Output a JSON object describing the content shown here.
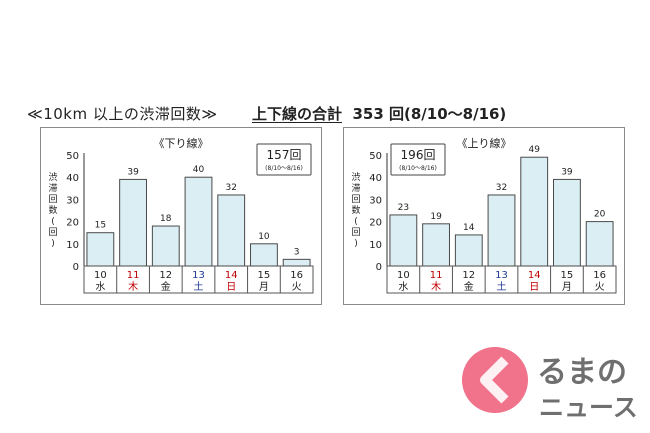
{
  "heading": {
    "left": "≪10km 以上の渋滞回数≫",
    "right_underlined": "上下線の合計",
    "right_total": "353 回(8/10〜8/16)"
  },
  "colors": {
    "bar_fill": "#daeef3",
    "bar_stroke": "#4a4a4a",
    "weekday_text": "#222222",
    "thursday_sunday_text": "#c00000",
    "saturday_text": "#1f3a93",
    "brand_red": "#e4002b",
    "brand_text": "#333333"
  },
  "brand": {
    "logo_text": "るまの",
    "logo_sub": "ニュース"
  },
  "chart_data": [
    {
      "type": "bar",
      "title": "《下り線》",
      "ylabel": "渋滞回数(回)",
      "ylim": [
        0,
        50
      ],
      "yticks": [
        "0",
        "10",
        "20",
        "30",
        "40",
        "50"
      ],
      "total_box": {
        "value": "157回",
        "range": "(8/10〜8/16)",
        "position": "top-right"
      },
      "categories": [
        {
          "day": "10",
          "weekday": "水",
          "color": "weekday"
        },
        {
          "day": "11",
          "weekday": "木",
          "color": "red"
        },
        {
          "day": "12",
          "weekday": "金",
          "color": "weekday"
        },
        {
          "day": "13",
          "weekday": "土",
          "color": "blue"
        },
        {
          "day": "14",
          "weekday": "日",
          "color": "red"
        },
        {
          "day": "15",
          "weekday": "月",
          "color": "weekday"
        },
        {
          "day": "16",
          "weekday": "火",
          "color": "weekday"
        }
      ],
      "values": [
        15,
        39,
        18,
        40,
        32,
        10,
        3
      ]
    },
    {
      "type": "bar",
      "title": "《上り線》",
      "ylabel": "渋滞回数(回)",
      "ylim": [
        0,
        50
      ],
      "yticks": [
        "0",
        "10",
        "20",
        "30",
        "40",
        "50"
      ],
      "total_box": {
        "value": "196回",
        "range": "(8/10〜8/16)",
        "position": "top-left"
      },
      "categories": [
        {
          "day": "10",
          "weekday": "水",
          "color": "weekday"
        },
        {
          "day": "11",
          "weekday": "木",
          "color": "red"
        },
        {
          "day": "12",
          "weekday": "金",
          "color": "weekday"
        },
        {
          "day": "13",
          "weekday": "土",
          "color": "blue"
        },
        {
          "day": "14",
          "weekday": "日",
          "color": "red"
        },
        {
          "day": "15",
          "weekday": "月",
          "color": "weekday"
        },
        {
          "day": "16",
          "weekday": "火",
          "color": "weekday"
        }
      ],
      "values": [
        23,
        19,
        14,
        32,
        49,
        39,
        20
      ]
    }
  ]
}
